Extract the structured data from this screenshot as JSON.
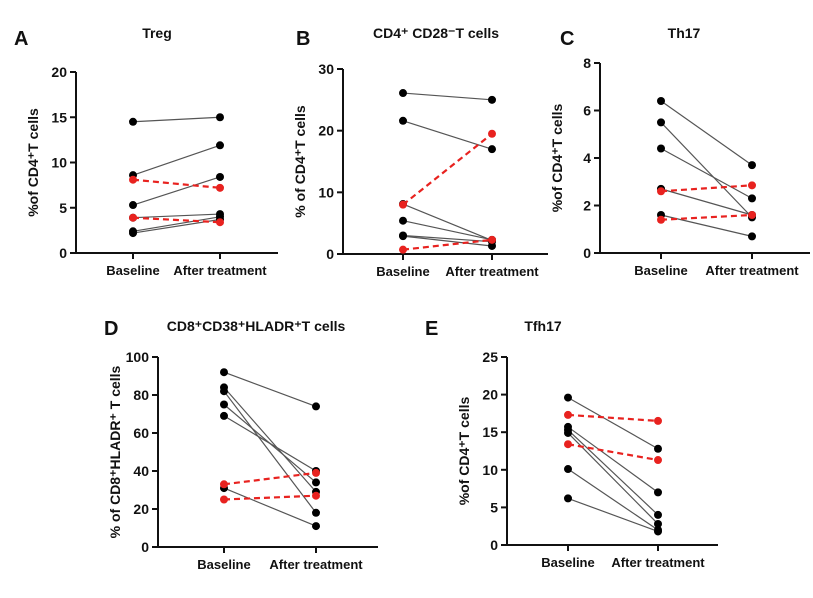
{
  "colors": {
    "patient": "#000000",
    "highlight": "#e8221f",
    "connector": "#555555"
  },
  "chart_data": [
    {
      "type": "line",
      "panel": "A",
      "title": "Treg",
      "ylabel": "%of CD4⁺T cells",
      "ylim": [
        0,
        20
      ],
      "yticks": [
        0,
        5,
        10,
        15,
        20
      ],
      "categories": [
        "Baseline",
        "After treatment"
      ],
      "series": [
        {
          "values": [
            14.5,
            15.0
          ],
          "style": "solid"
        },
        {
          "values": [
            8.6,
            11.9
          ],
          "style": "solid"
        },
        {
          "values": [
            5.3,
            8.4
          ],
          "style": "solid"
        },
        {
          "values": [
            3.9,
            4.3
          ],
          "style": "solid"
        },
        {
          "values": [
            2.4,
            4.0
          ],
          "style": "solid"
        },
        {
          "values": [
            2.2,
            3.7
          ],
          "style": "solid"
        },
        {
          "values": [
            8.1,
            7.2
          ],
          "style": "dashed-red"
        },
        {
          "values": [
            3.9,
            3.4
          ],
          "style": "dashed-red"
        }
      ]
    },
    {
      "type": "line",
      "panel": "B",
      "title": "CD4⁺ CD28⁻T cells",
      "ylabel": "% of CD4⁺T cells",
      "ylim": [
        0,
        30
      ],
      "yticks": [
        0,
        10,
        20,
        30
      ],
      "categories": [
        "Baseline",
        "After treatment"
      ],
      "series": [
        {
          "values": [
            26.1,
            25.0
          ],
          "style": "solid"
        },
        {
          "values": [
            21.6,
            17.0
          ],
          "style": "solid"
        },
        {
          "values": [
            8.1,
            2.2
          ],
          "style": "solid"
        },
        {
          "values": [
            5.4,
            2.3
          ],
          "style": "solid"
        },
        {
          "values": [
            3.0,
            2.0
          ],
          "style": "solid"
        },
        {
          "values": [
            2.9,
            1.3
          ],
          "style": "solid"
        },
        {
          "values": [
            8.0,
            19.5
          ],
          "style": "dashed-red"
        },
        {
          "values": [
            0.7,
            2.3
          ],
          "style": "dashed-red"
        }
      ]
    },
    {
      "type": "line",
      "panel": "C",
      "title": "Th17",
      "ylabel": "%of CD4⁺T cells",
      "ylim": [
        0,
        8
      ],
      "yticks": [
        0,
        2,
        4,
        6,
        8
      ],
      "categories": [
        "Baseline",
        "After treatment"
      ],
      "series": [
        {
          "values": [
            6.4,
            3.7
          ],
          "style": "solid"
        },
        {
          "values": [
            5.5,
            1.5
          ],
          "style": "solid"
        },
        {
          "values": [
            4.4,
            2.3
          ],
          "style": "solid"
        },
        {
          "values": [
            2.7,
            1.6
          ],
          "style": "solid"
        },
        {
          "values": [
            1.6,
            0.7
          ],
          "style": "solid"
        },
        {
          "values": [
            2.6,
            2.85
          ],
          "style": "dashed-red"
        },
        {
          "values": [
            1.4,
            1.6
          ],
          "style": "dashed-red"
        }
      ]
    },
    {
      "type": "line",
      "panel": "D",
      "title": "CD8⁺CD38⁺HLADR⁺T cells",
      "ylabel": "% of CD8⁺HLADR⁺ T cells",
      "ylim": [
        0,
        100
      ],
      "yticks": [
        0,
        20,
        40,
        60,
        80,
        100
      ],
      "categories": [
        "Baseline",
        "After treatment"
      ],
      "series": [
        {
          "values": [
            92,
            74
          ],
          "style": "solid"
        },
        {
          "values": [
            84,
            29
          ],
          "style": "solid"
        },
        {
          "values": [
            82,
            18
          ],
          "style": "solid"
        },
        {
          "values": [
            75,
            34
          ],
          "style": "solid"
        },
        {
          "values": [
            69,
            40
          ],
          "style": "solid"
        },
        {
          "values": [
            31,
            11
          ],
          "style": "solid"
        },
        {
          "values": [
            33,
            39
          ],
          "style": "dashed-red"
        },
        {
          "values": [
            25,
            27
          ],
          "style": "dashed-red"
        }
      ]
    },
    {
      "type": "line",
      "panel": "E",
      "title": "Tfh17",
      "ylabel": "%of CD4⁺T cells",
      "ylim": [
        0,
        25
      ],
      "yticks": [
        0,
        5,
        10,
        15,
        20,
        25
      ],
      "categories": [
        "Baseline",
        "After treatment"
      ],
      "series": [
        {
          "values": [
            19.6,
            12.8
          ],
          "style": "solid"
        },
        {
          "values": [
            15.7,
            7.0
          ],
          "style": "solid"
        },
        {
          "values": [
            15.3,
            4.0
          ],
          "style": "solid"
        },
        {
          "values": [
            14.9,
            2.8
          ],
          "style": "solid"
        },
        {
          "values": [
            10.1,
            2.0
          ],
          "style": "solid"
        },
        {
          "values": [
            6.2,
            1.8
          ],
          "style": "solid"
        },
        {
          "values": [
            17.3,
            16.5
          ],
          "style": "dashed-red"
        },
        {
          "values": [
            13.4,
            11.3
          ],
          "style": "dashed-red"
        }
      ]
    }
  ]
}
